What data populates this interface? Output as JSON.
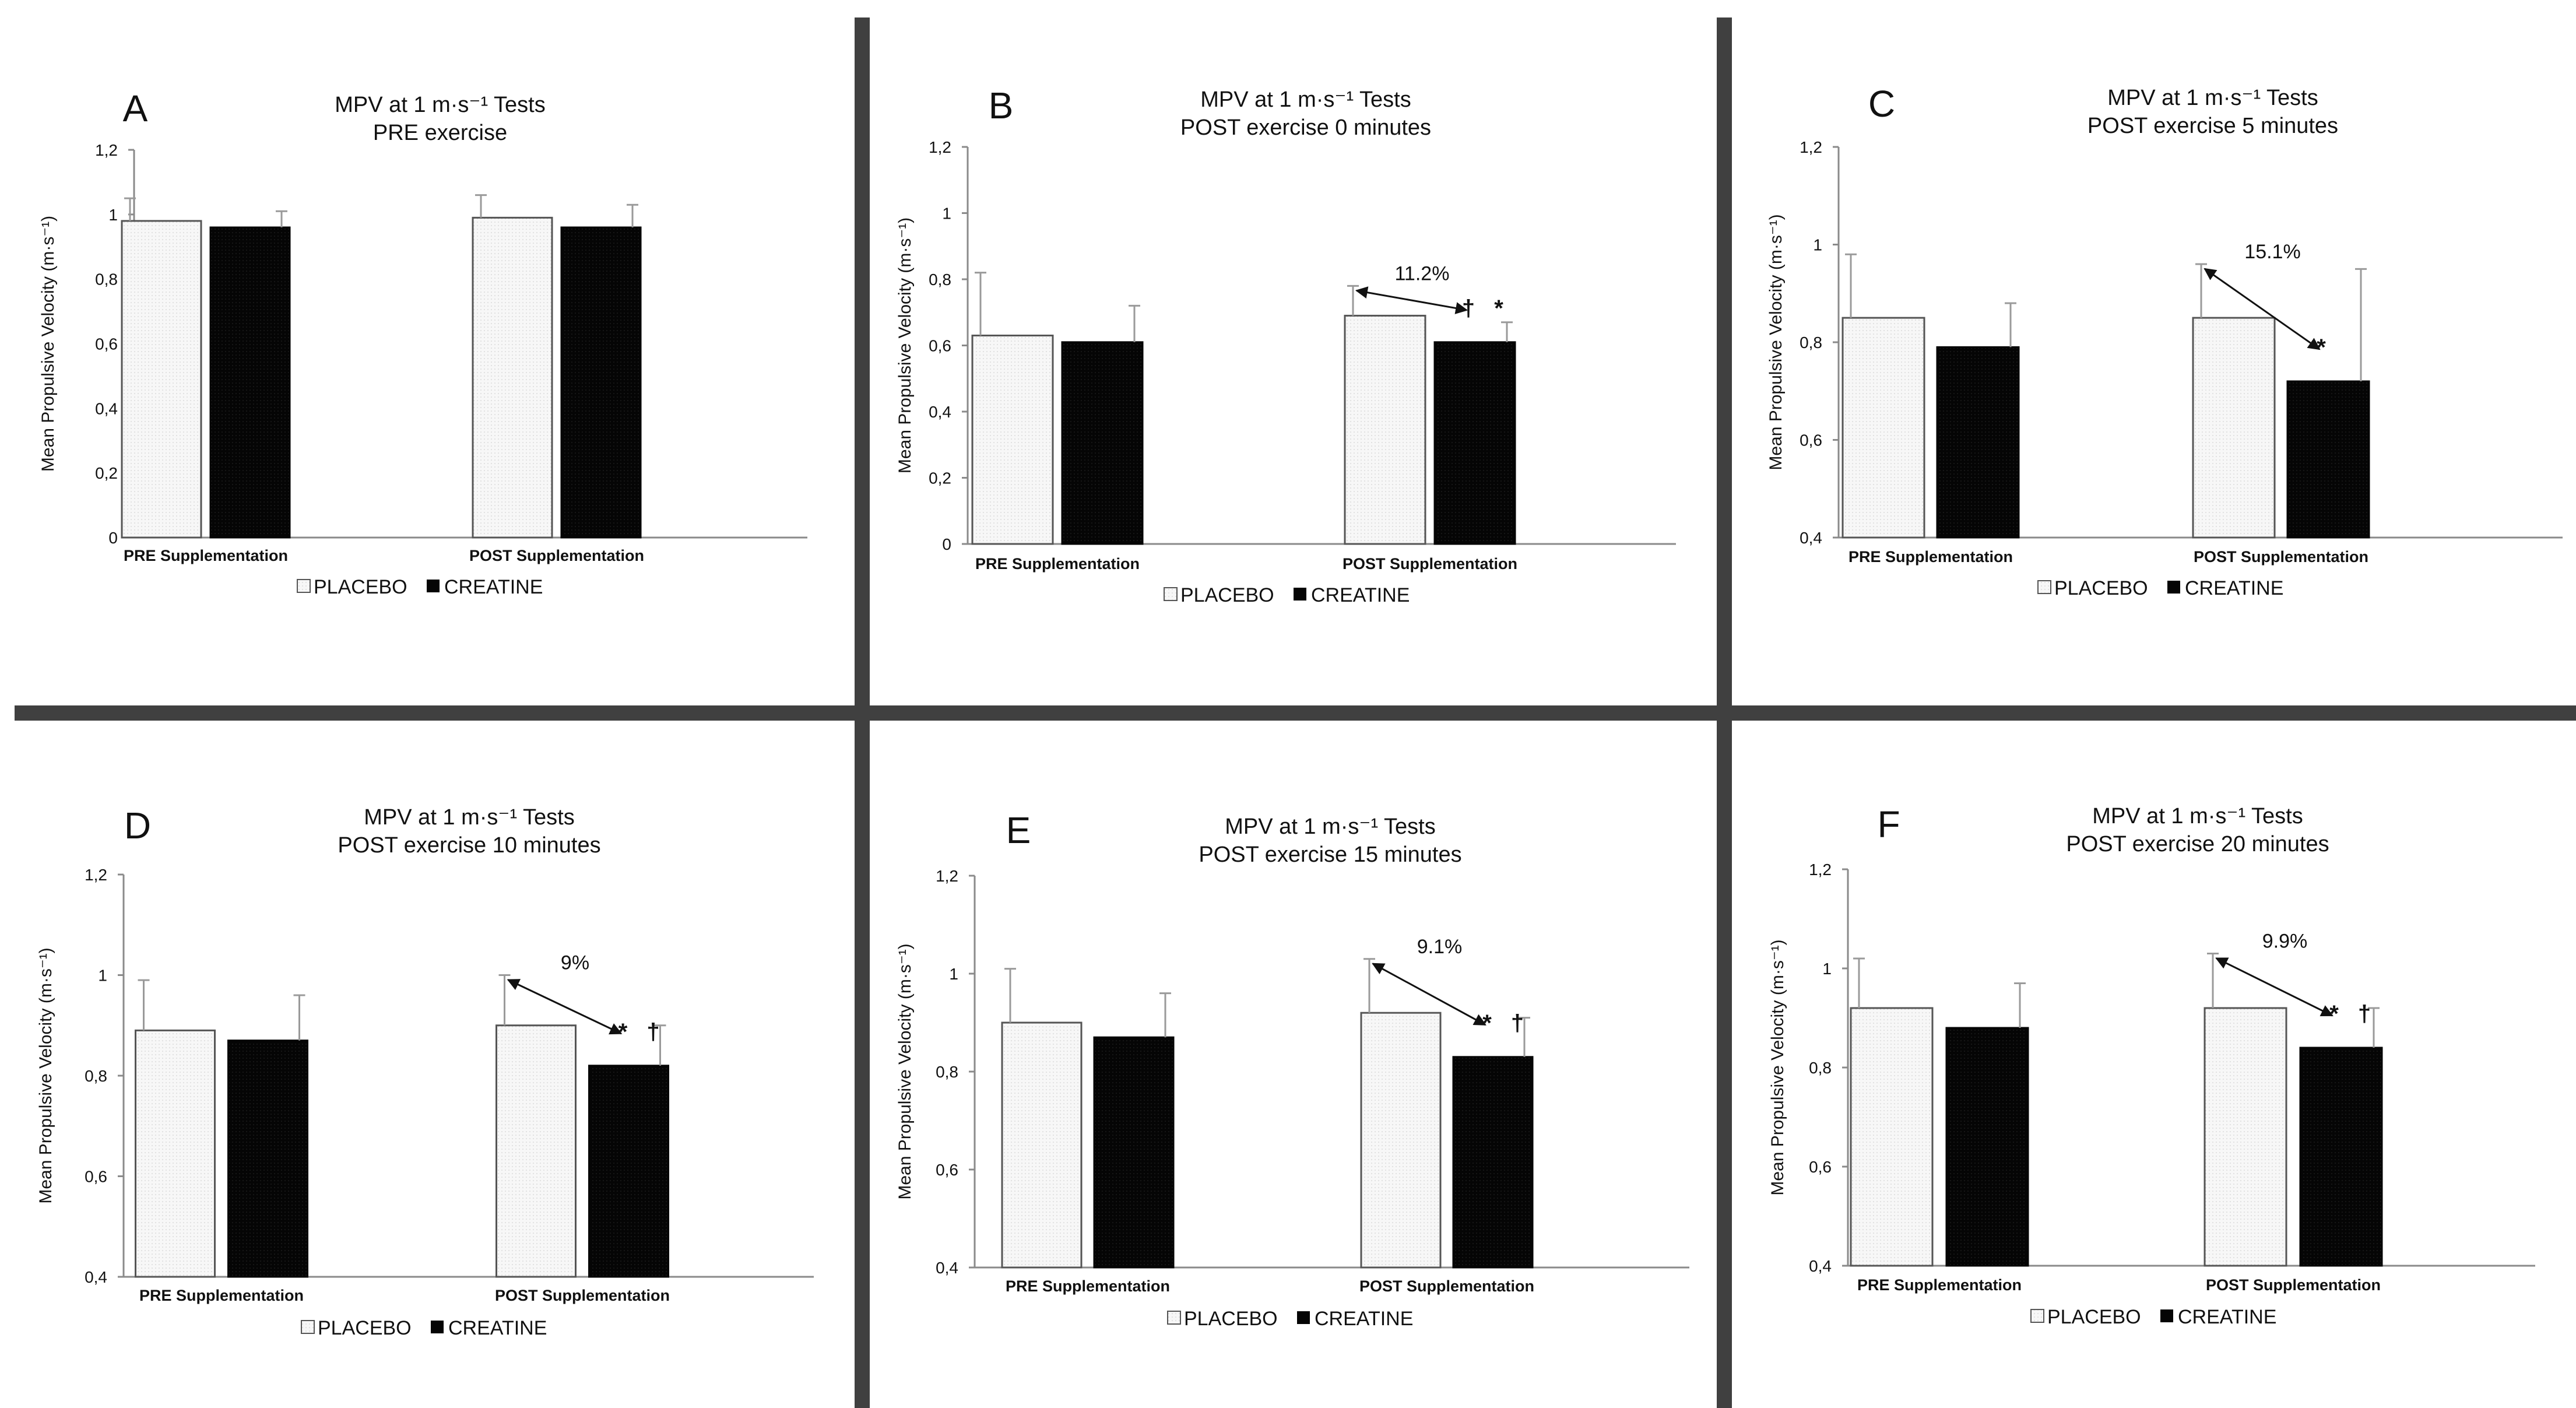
{
  "colors": {
    "placebo_fill": "#f7f7f7",
    "placebo_stroke": "#555555",
    "creatine": "#050505",
    "divider": "#404040",
    "axis": "#8a8a8a"
  },
  "chart_data": [
    {
      "panel": "A",
      "type": "bar",
      "title": [
        "MPV at 1 m·s⁻¹ Tests",
        "PRE exercise"
      ],
      "ylabel": "Mean Propulsive Velocity (m·s⁻¹)",
      "ylim": [
        0,
        1.2
      ],
      "yticks": [
        "0",
        "0,2",
        "0,4",
        "0,6",
        "0,8",
        "1",
        "1,2"
      ],
      "categories": [
        "PRE Supplementation",
        "POST Supplementation"
      ],
      "series": [
        {
          "name": "PLACEBO",
          "values": [
            0.98,
            0.99
          ],
          "errors": [
            0.07,
            0.07
          ]
        },
        {
          "name": "CREATINE",
          "values": [
            0.96,
            0.96
          ],
          "errors": [
            0.05,
            0.07
          ]
        }
      ],
      "legend": [
        "PLACEBO",
        "CREATINE"
      ],
      "annotation": null
    },
    {
      "panel": "B",
      "type": "bar",
      "title": [
        "MPV at 1 m·s⁻¹ Tests",
        "POST exercise 0 minutes"
      ],
      "ylabel": "Mean Propulsive Velocity (m·s⁻¹)",
      "ylim": [
        0,
        1.2
      ],
      "yticks": [
        "0",
        "0,2",
        "0,4",
        "0,6",
        "0,8",
        "1",
        "1,2"
      ],
      "categories": [
        "PRE Supplementation",
        "POST Supplementation"
      ],
      "series": [
        {
          "name": "PLACEBO",
          "values": [
            0.63,
            0.69
          ],
          "errors": [
            0.19,
            0.09
          ]
        },
        {
          "name": "CREATINE",
          "values": [
            0.61,
            0.61
          ],
          "errors": [
            0.11,
            0.06
          ]
        }
      ],
      "legend": [
        "PLACEBO",
        "CREATINE"
      ],
      "annotation": {
        "percent": "11.2%",
        "marks": [
          "†",
          "*"
        ]
      }
    },
    {
      "panel": "C",
      "type": "bar",
      "title": [
        "MPV at 1 m·s⁻¹ Tests",
        "POST exercise 5 minutes"
      ],
      "ylabel": "Mean Propulsive Velocity (m·s⁻¹)",
      "ylim": [
        0.4,
        1.2
      ],
      "yticks": [
        "0,4",
        "0,6",
        "0,8",
        "1",
        "1,2"
      ],
      "categories": [
        "PRE Supplementation",
        "POST Supplementation"
      ],
      "series": [
        {
          "name": "PLACEBO",
          "values": [
            0.85,
            0.85
          ],
          "errors": [
            0.13,
            0.11
          ]
        },
        {
          "name": "CREATINE",
          "values": [
            0.79,
            0.72
          ],
          "errors": [
            0.09,
            0.23
          ]
        }
      ],
      "legend": [
        "PLACEBO",
        "CREATINE"
      ],
      "annotation": {
        "percent": "15.1%",
        "marks": [
          "*"
        ]
      }
    },
    {
      "panel": "D",
      "type": "bar",
      "title": [
        "MPV at 1 m·s⁻¹ Tests",
        "POST exercise 10 minutes"
      ],
      "ylabel": "Mean Propulsive Velocity (m·s⁻¹)",
      "ylim": [
        0.4,
        1.2
      ],
      "yticks": [
        "0,4",
        "0,6",
        "0,8",
        "1",
        "1,2"
      ],
      "categories": [
        "PRE Supplementation",
        "POST Supplementation"
      ],
      "series": [
        {
          "name": "PLACEBO",
          "values": [
            0.89,
            0.9
          ],
          "errors": [
            0.1,
            0.1
          ]
        },
        {
          "name": "CREATINE",
          "values": [
            0.87,
            0.82
          ],
          "errors": [
            0.09,
            0.08
          ]
        }
      ],
      "legend": [
        "PLACEBO",
        "CREATINE"
      ],
      "annotation": {
        "percent": "9%",
        "marks": [
          "*",
          "†"
        ]
      }
    },
    {
      "panel": "E",
      "type": "bar",
      "title": [
        "MPV at 1 m·s⁻¹ Tests",
        "POST exercise 15 minutes"
      ],
      "ylabel": "Mean Propulsive Velocity (m·s⁻¹)",
      "ylim": [
        0.4,
        1.2
      ],
      "yticks": [
        "0,4",
        "0,6",
        "0,8",
        "1",
        "1,2"
      ],
      "categories": [
        "PRE Supplementation",
        "POST Supplementation"
      ],
      "series": [
        {
          "name": "PLACEBO",
          "values": [
            0.9,
            0.92
          ],
          "errors": [
            0.11,
            0.11
          ]
        },
        {
          "name": "CREATINE",
          "values": [
            0.87,
            0.83
          ],
          "errors": [
            0.09,
            0.08
          ]
        }
      ],
      "legend": [
        "PLACEBO",
        "CREATINE"
      ],
      "annotation": {
        "percent": "9.1%",
        "marks": [
          "*",
          "†"
        ]
      }
    },
    {
      "panel": "F",
      "type": "bar",
      "title": [
        "MPV at 1 m·s⁻¹ Tests",
        "POST exercise 20 minutes"
      ],
      "ylabel": "Mean Propulsive Velocity (m·s⁻¹)",
      "ylim": [
        0.4,
        1.2
      ],
      "yticks": [
        "0,4",
        "0,6",
        "0,8",
        "1",
        "1,2"
      ],
      "categories": [
        "PRE Supplementation",
        "POST Supplementation"
      ],
      "series": [
        {
          "name": "PLACEBO",
          "values": [
            0.92,
            0.92
          ],
          "errors": [
            0.1,
            0.11
          ]
        },
        {
          "name": "CREATINE",
          "values": [
            0.88,
            0.84
          ],
          "errors": [
            0.09,
            0.08
          ]
        }
      ],
      "legend": [
        "PLACEBO",
        "CREATINE"
      ],
      "annotation": {
        "percent": "9.9%",
        "marks": [
          "*",
          "†"
        ]
      }
    }
  ]
}
